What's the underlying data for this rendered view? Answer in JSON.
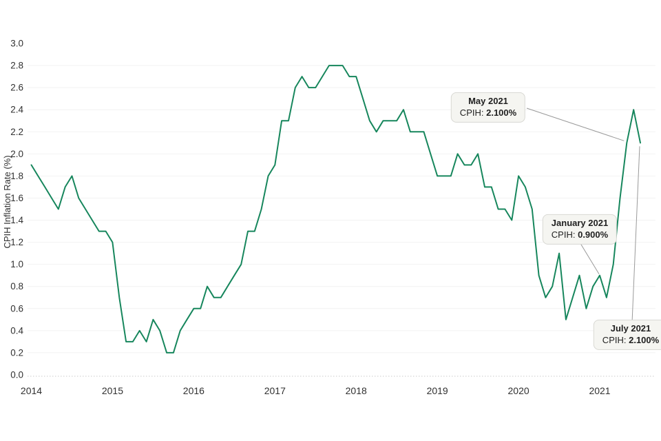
{
  "chart_data": {
    "type": "line",
    "title": "",
    "xlabel": "",
    "ylabel": "CPIH Inflation Rate (%)",
    "ylim": [
      0.0,
      3.0
    ],
    "y_tick_step": 0.2,
    "y_tick_labels": [
      "0.0",
      "0.2",
      "0.4",
      "0.6",
      "0.8",
      "1.0",
      "1.2",
      "1.4",
      "1.6",
      "1.8",
      "2.0",
      "2.2",
      "2.4",
      "2.6",
      "2.8",
      "3.0"
    ],
    "x_tick_labels": [
      "2014",
      "2015",
      "2016",
      "2017",
      "2018",
      "2019",
      "2020",
      "2021"
    ],
    "grid": "horizontal, light gray; zero line dotted",
    "legend_position": "none",
    "line_color": "#16865c",
    "start_month": "2014-01",
    "end_month": "2021-07",
    "series": [
      {
        "name": "CPIH Inflation Rate (%)",
        "values_by_year": {
          "2014": [
            1.9,
            1.8,
            1.7,
            1.6,
            1.5,
            1.7,
            1.8,
            1.6,
            1.5,
            1.4,
            1.3,
            1.3
          ],
          "2015": [
            1.2,
            0.7,
            0.3,
            0.3,
            0.4,
            0.3,
            0.5,
            0.4,
            0.2,
            0.2,
            0.4,
            0.5
          ],
          "2016": [
            0.6,
            0.6,
            0.8,
            0.7,
            0.7,
            0.8,
            0.9,
            1.0,
            1.3,
            1.3,
            1.5,
            1.8
          ],
          "2017": [
            1.9,
            2.3,
            2.3,
            2.6,
            2.7,
            2.6,
            2.6,
            2.7,
            2.8,
            2.8,
            2.8,
            2.7
          ],
          "2018": [
            2.7,
            2.5,
            2.3,
            2.2,
            2.3,
            2.3,
            2.3,
            2.4,
            2.2,
            2.2,
            2.2,
            2.0
          ],
          "2019": [
            1.8,
            1.8,
            1.8,
            2.0,
            1.9,
            1.9,
            2.0,
            1.7,
            1.7,
            1.5,
            1.5,
            1.4
          ],
          "2020": [
            1.8,
            1.7,
            1.5,
            0.9,
            0.7,
            0.8,
            1.1,
            0.5,
            0.7,
            0.9,
            0.6,
            0.8
          ],
          "2021": [
            0.9,
            0.7,
            1.0,
            1.6,
            2.1,
            2.4,
            2.1
          ]
        }
      }
    ],
    "annotations": [
      {
        "title": "May 2021",
        "metric": "CPIH:",
        "value": "2.100%",
        "month": "2021-05"
      },
      {
        "title": "January 2021",
        "metric": "CPIH:",
        "value": "0.900%",
        "month": "2021-01"
      },
      {
        "title": "July 2021",
        "metric": "CPIH:",
        "value": "2.100%",
        "month": "2021-07"
      }
    ],
    "colors": {
      "line": "#16865c",
      "gridline": "#f2f2f2",
      "zero_line_dotted": "#c9c9c9",
      "tick_text": "#303030",
      "annotation_bg": "#f5f5f1",
      "annotation_border": "#d8d8d3",
      "leader_line": "#999999"
    }
  }
}
